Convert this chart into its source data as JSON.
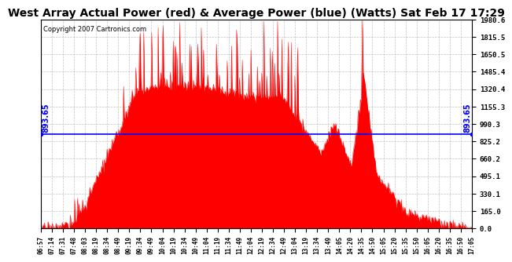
{
  "title": "West Array Actual Power (red) & Average Power (blue) (Watts) Sat Feb 17 17:29",
  "copyright": "Copyright 2007 Cartronics.com",
  "avg_power": 893.65,
  "y_max": 1980.6,
  "y_min": 0.0,
  "y_ticks": [
    0.0,
    165.0,
    330.1,
    495.1,
    660.2,
    825.2,
    990.3,
    1155.3,
    1320.4,
    1485.4,
    1650.5,
    1815.5,
    1980.6
  ],
  "x_labels": [
    "06:57",
    "07:14",
    "07:31",
    "07:48",
    "08:03",
    "08:19",
    "08:34",
    "08:49",
    "09:19",
    "09:34",
    "09:49",
    "10:04",
    "10:19",
    "10:34",
    "10:49",
    "11:04",
    "11:19",
    "11:34",
    "11:49",
    "12:04",
    "12:19",
    "12:34",
    "12:49",
    "13:04",
    "13:19",
    "13:34",
    "13:49",
    "14:05",
    "14:20",
    "14:35",
    "14:50",
    "15:05",
    "15:20",
    "15:35",
    "15:50",
    "16:05",
    "16:20",
    "16:35",
    "16:50",
    "17:05"
  ],
  "fill_color": "#FF0000",
  "line_color": "#FF0000",
  "avg_line_color": "#0000FF",
  "bg_color": "#FFFFFF",
  "grid_color": "#AAAAAA",
  "title_fontsize": 10,
  "copyright_fontsize": 6,
  "avg_label_color": "#0000FF",
  "avg_label_fontsize": 7
}
